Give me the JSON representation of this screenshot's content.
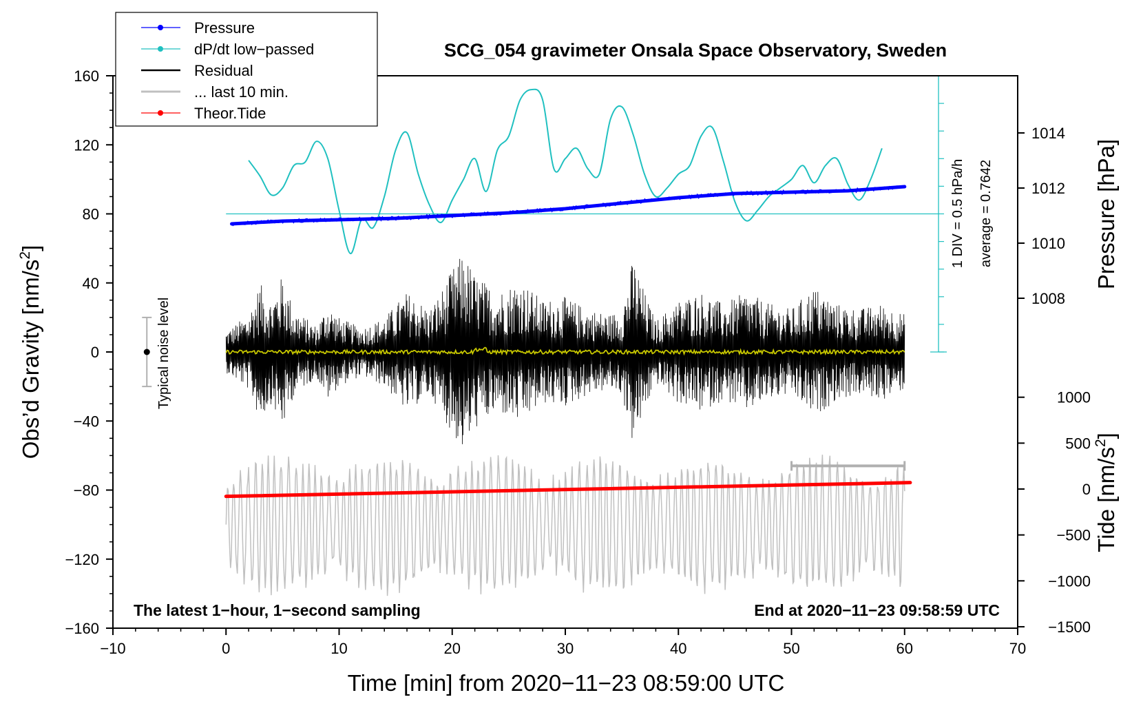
{
  "chart_data": {
    "type": "line",
    "title": "SCG_054 gravimeter Onsala Space Observatory, Sweden",
    "xlabel": "Time [min] from 2020−11−23 08:59:00 UTC",
    "ylabel_left_main": "Obs’d Gravity [nm/s",
    "ylabel_left_sup": "2",
    "ylabel_left_end": "]",
    "ylabel_right_top": "Pressure [hPa]",
    "ylabel_right_bottom_main": "Tide [nm/s",
    "ylabel_right_bottom_sup": "2",
    "ylabel_right_bottom_end": "]",
    "xlim": [
      -10,
      70
    ],
    "ylim": [
      -160,
      160
    ],
    "x_ticks": [
      -10,
      0,
      10,
      20,
      30,
      40,
      50,
      60,
      70
    ],
    "x_tick_labels": [
      "−10",
      "0",
      "10",
      "20",
      "30",
      "40",
      "50",
      "60",
      "70"
    ],
    "y_ticks": [
      160,
      120,
      80,
      40,
      0,
      -40,
      -80,
      -120,
      -160
    ],
    "y_tick_labels": [
      "160",
      "120",
      "80",
      "40",
      "0",
      "−40",
      "−80",
      "−120",
      "−160"
    ],
    "pressure_ticks": [
      1014,
      1012,
      1010,
      1008
    ],
    "pressure_tick_labels": [
      "1014",
      "1012",
      "1010",
      "1008"
    ],
    "tide_ticks": [
      1000,
      500,
      0,
      -500,
      -1000,
      -1500
    ],
    "tide_tick_labels": [
      "1000",
      "500",
      "0",
      "−500",
      "−1000",
      "−1500"
    ],
    "legend": [
      {
        "label": "Pressure",
        "color": "#0000ff",
        "marker": true
      },
      {
        "label": "dP/dt low−passed",
        "color": "#20c0c0",
        "marker": true
      },
      {
        "label": "Residual",
        "color": "#000000",
        "marker": false
      },
      {
        "label": "... last 10 min.",
        "color": "#c0c0c0",
        "marker": false
      },
      {
        "label": "Theor.Tide",
        "color": "#ff0000",
        "marker": true
      }
    ],
    "colors": {
      "pressure": "#0000ff",
      "dpdt": "#20c0c0",
      "residual": "#000000",
      "residual_smooth": "#c8c800",
      "last10": "#c0c0c0",
      "tide": "#ff0000",
      "noise_bar": "#b0b0b0"
    },
    "series": [
      {
        "name": "Pressure",
        "axis": "pressure_hPa",
        "x": [
          0.5,
          5,
          10,
          15,
          20,
          25,
          30,
          35,
          40,
          45,
          50,
          55,
          60
        ],
        "values": [
          1010.7,
          1010.8,
          1010.85,
          1010.9,
          1011.0,
          1011.1,
          1011.25,
          1011.45,
          1011.65,
          1011.8,
          1011.85,
          1011.9,
          1012.05
        ]
      },
      {
        "name": "dP/dt low−passed",
        "axis": "gravity_plot_units",
        "x": [
          2,
          3,
          4,
          5,
          6,
          7,
          8,
          9,
          10,
          11,
          12,
          13,
          14,
          15,
          16,
          17,
          18,
          19,
          20,
          21,
          22,
          23,
          24,
          25,
          26,
          27,
          28,
          29,
          30,
          31,
          32,
          33,
          34,
          35,
          36,
          37,
          38,
          39,
          40,
          41,
          42,
          43,
          44,
          45,
          46,
          47,
          48,
          49,
          50,
          51,
          52,
          53,
          54,
          55,
          56,
          57,
          58
        ],
        "values": [
          111,
          102,
          91,
          95,
          108,
          110,
          122,
          112,
          82,
          57,
          77,
          72,
          90,
          117,
          127,
          103,
          85,
          75,
          88,
          100,
          112,
          93,
          117,
          125,
          146,
          152,
          146,
          106,
          112,
          118,
          106,
          103,
          135,
          142,
          126,
          103,
          90,
          95,
          103,
          108,
          125,
          130,
          110,
          87,
          76,
          82,
          90,
          95,
          100,
          108,
          98,
          108,
          112,
          97,
          88,
          100,
          118
        ]
      },
      {
        "name": "Residual",
        "axis": "gravity",
        "x_range": [
          0,
          60
        ],
        "note": "1-second residual, amplitude envelope approx ±10 to ±60 nm/s2"
      },
      {
        "name": "... last 10 min.",
        "axis": "gravity_plot_units",
        "x_range": [
          0,
          60
        ],
        "note": "last 10 minutes of residual, time-stretched, offset around -100"
      },
      {
        "name": "Theor.Tide",
        "axis": "tide_nm_s2",
        "x": [
          0,
          60.5
        ],
        "values": [
          -80,
          70
        ]
      }
    ],
    "noise_level": {
      "label": "Typical noise level",
      "x": -7,
      "center": 0,
      "half_range": 20
    },
    "last10_scale_bar": {
      "x_start": 50,
      "x_end": 60,
      "y": -66
    },
    "dpdt_scale": {
      "label1": "1 DIV = 0.5 hPa/h",
      "label2": "average = 0.7642",
      "baseline_y": 80
    },
    "annotations": {
      "left": "The latest 1−hour, 1−second sampling",
      "right": "End at 2020−11−23 09:58:59 UTC"
    },
    "grid": false,
    "legend_position": "top-left"
  }
}
